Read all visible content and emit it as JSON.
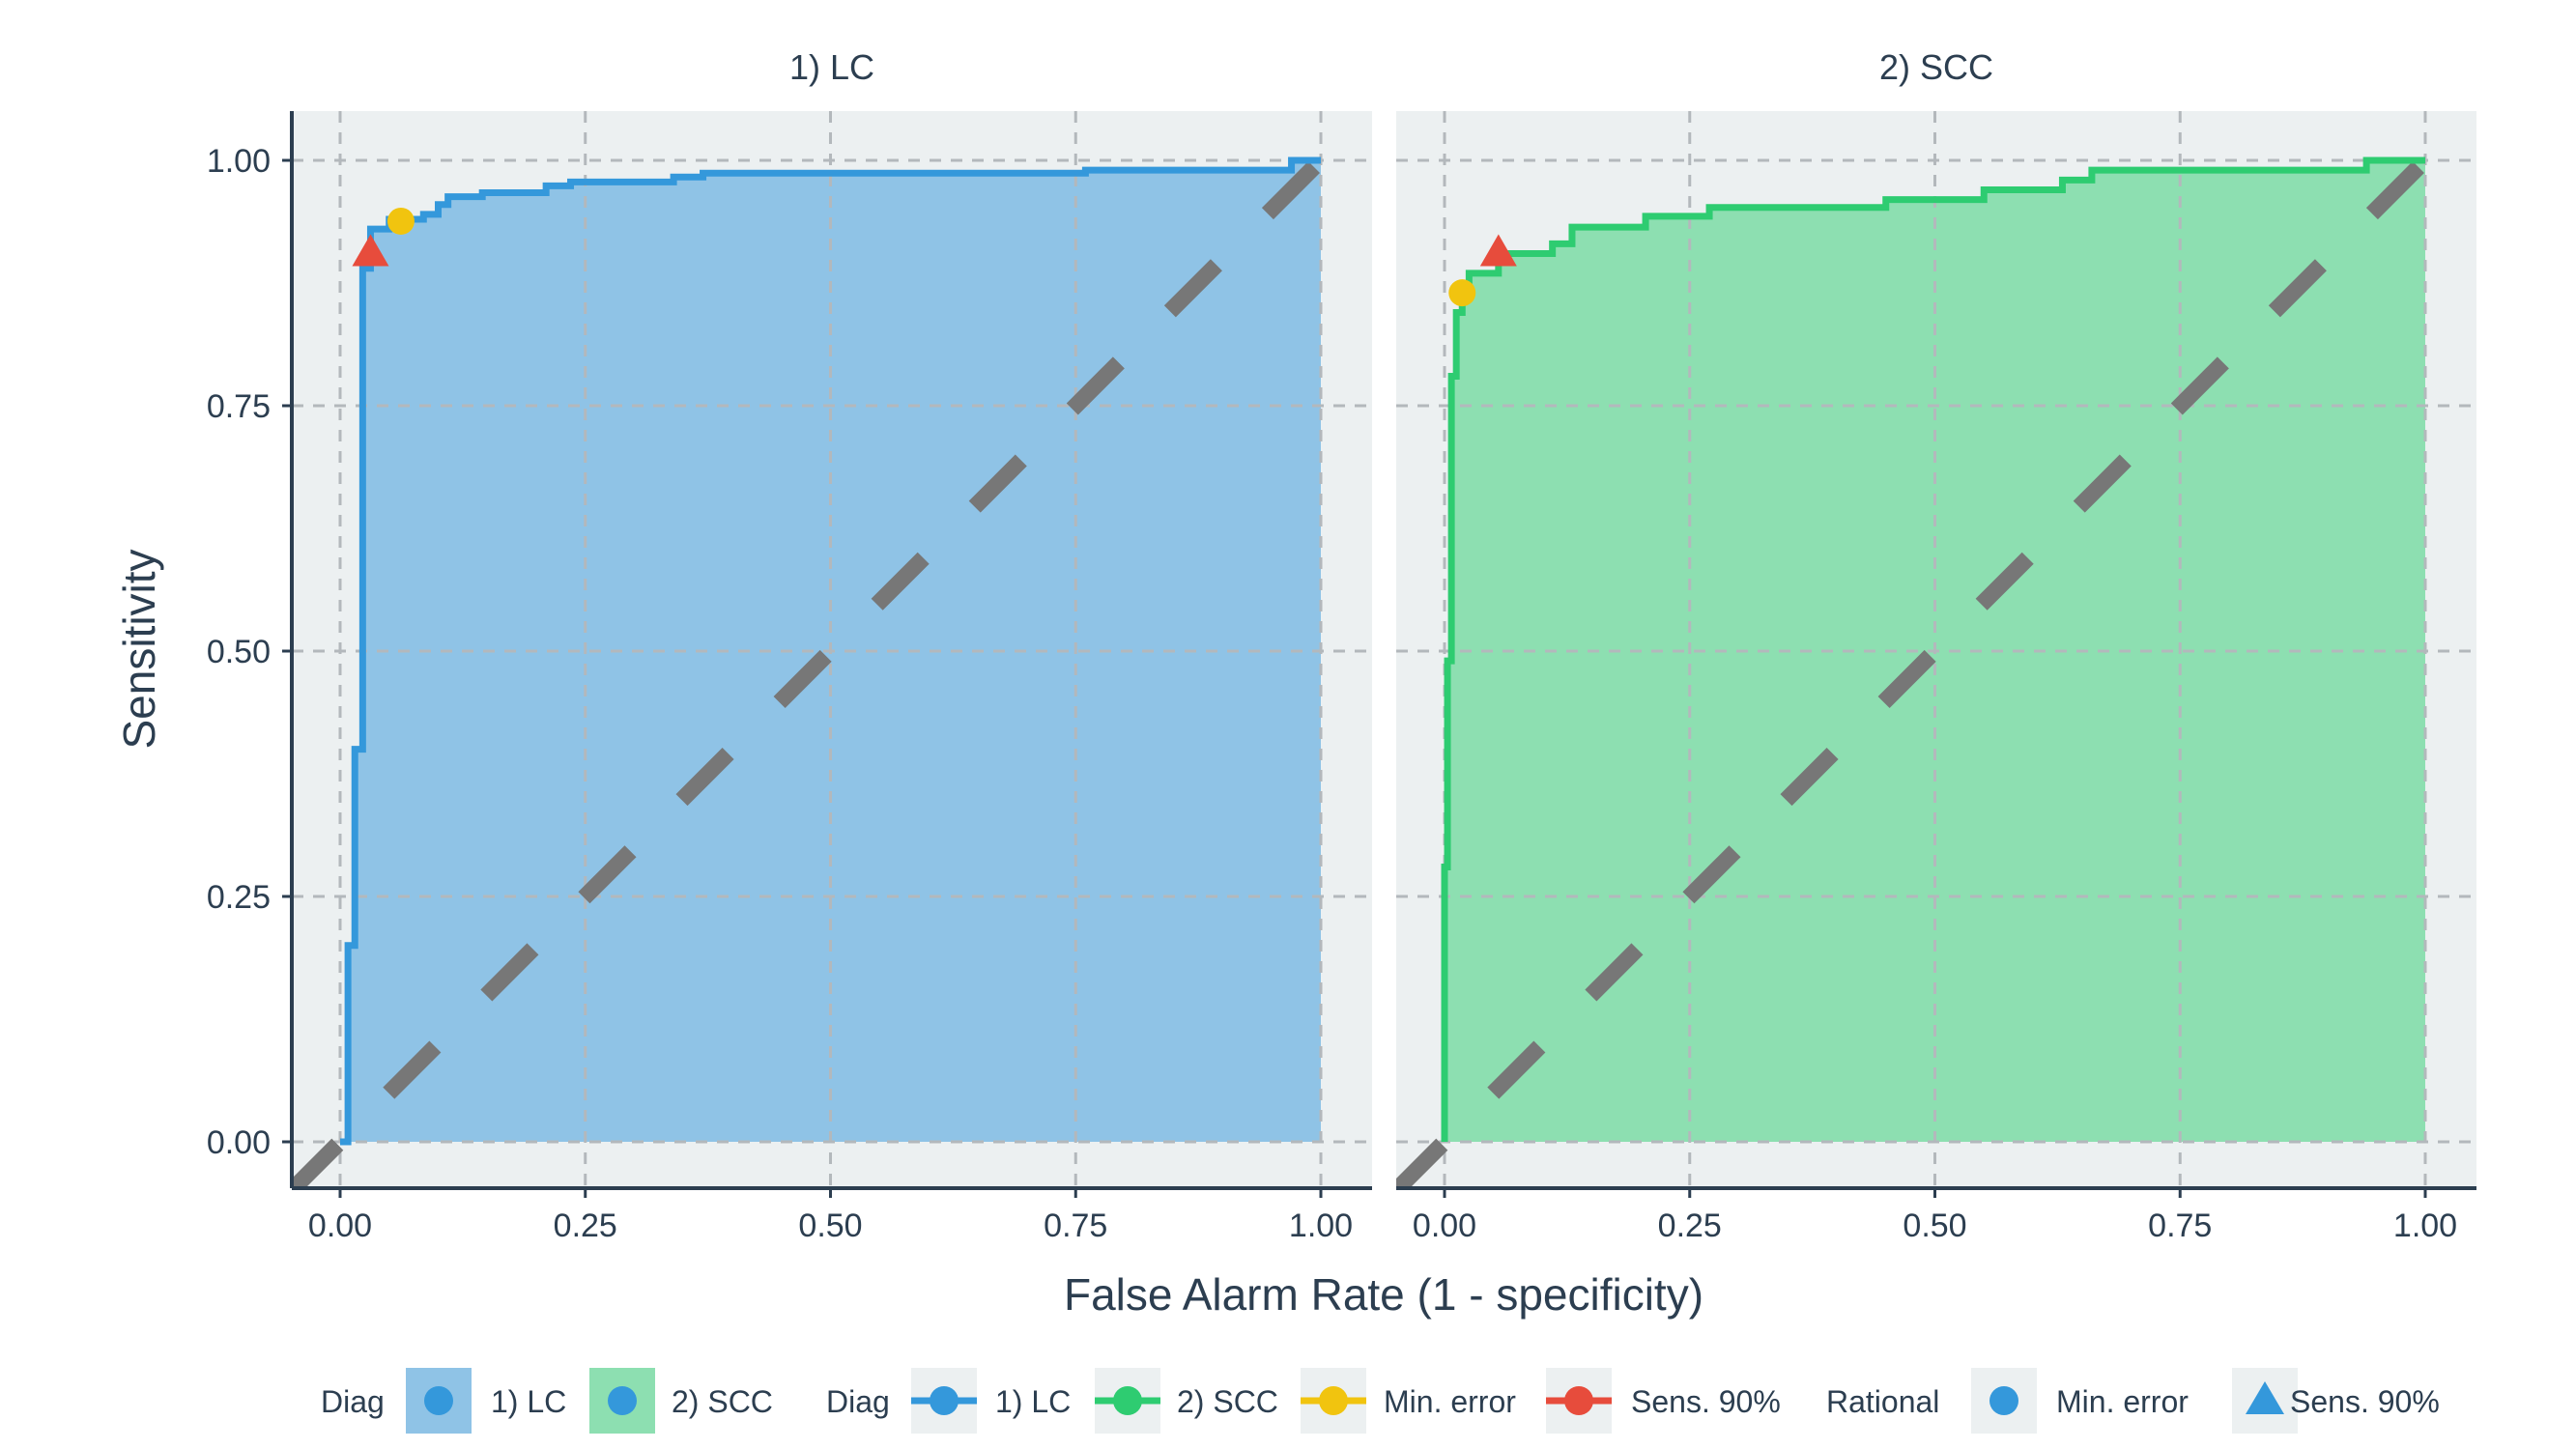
{
  "chart_data": {
    "type": "line",
    "xlabel": "False Alarm Rate (1 - specificity)",
    "ylabel": "Sensitivity",
    "xlim": [
      0,
      1
    ],
    "ylim": [
      0,
      1
    ],
    "x_ticks": [
      "0.00",
      "0.25",
      "0.50",
      "0.75",
      "1.00"
    ],
    "y_ticks": [
      "0.00",
      "0.25",
      "0.50",
      "0.75",
      "1.00"
    ],
    "grid": true,
    "legend_position": "bottom",
    "panels": [
      {
        "name": "1) LC",
        "line_color": "#3498db",
        "fill_color": "#8fc3e6",
        "roc": [
          [
            0,
            0
          ],
          [
            0.008,
            0
          ],
          [
            0.008,
            0.2
          ],
          [
            0.015,
            0.2
          ],
          [
            0.015,
            0.4
          ],
          [
            0.023,
            0.4
          ],
          [
            0.023,
            0.89
          ],
          [
            0.031,
            0.89
          ],
          [
            0.031,
            0.93
          ],
          [
            0.05,
            0.93
          ],
          [
            0.05,
            0.94
          ],
          [
            0.085,
            0.94
          ],
          [
            0.085,
            0.945
          ],
          [
            0.1,
            0.945
          ],
          [
            0.1,
            0.955
          ],
          [
            0.11,
            0.955
          ],
          [
            0.11,
            0.963
          ],
          [
            0.145,
            0.963
          ],
          [
            0.145,
            0.967
          ],
          [
            0.21,
            0.967
          ],
          [
            0.21,
            0.974
          ],
          [
            0.235,
            0.974
          ],
          [
            0.235,
            0.978
          ],
          [
            0.34,
            0.978
          ],
          [
            0.34,
            0.983
          ],
          [
            0.37,
            0.983
          ],
          [
            0.37,
            0.987
          ],
          [
            0.76,
            0.987
          ],
          [
            0.76,
            0.99
          ],
          [
            0.97,
            0.99
          ],
          [
            0.97,
            1.0
          ],
          [
            1.0,
            1.0
          ]
        ],
        "points": [
          {
            "label": "Min. error",
            "x": 0.062,
            "y": 0.938,
            "color": "#f1c40f",
            "shape": "circle"
          },
          {
            "label": "Sens. 90%",
            "x": 0.031,
            "y": 0.905,
            "color": "#e74c3c",
            "shape": "triangle"
          }
        ]
      },
      {
        "name": "2) SCC",
        "line_color": "#2ecc71",
        "fill_color": "#8ddfb1",
        "roc": [
          [
            0,
            0
          ],
          [
            0,
            0.28
          ],
          [
            0.003,
            0.28
          ],
          [
            0.003,
            0.49
          ],
          [
            0.007,
            0.49
          ],
          [
            0.007,
            0.78
          ],
          [
            0.012,
            0.78
          ],
          [
            0.012,
            0.845
          ],
          [
            0.018,
            0.845
          ],
          [
            0.018,
            0.87
          ],
          [
            0.025,
            0.87
          ],
          [
            0.025,
            0.885
          ],
          [
            0.055,
            0.885
          ],
          [
            0.055,
            0.905
          ],
          [
            0.11,
            0.905
          ],
          [
            0.11,
            0.915
          ],
          [
            0.13,
            0.915
          ],
          [
            0.13,
            0.932
          ],
          [
            0.205,
            0.932
          ],
          [
            0.205,
            0.943
          ],
          [
            0.27,
            0.943
          ],
          [
            0.27,
            0.952
          ],
          [
            0.45,
            0.952
          ],
          [
            0.45,
            0.96
          ],
          [
            0.55,
            0.96
          ],
          [
            0.55,
            0.97
          ],
          [
            0.63,
            0.97
          ],
          [
            0.63,
            0.98
          ],
          [
            0.66,
            0.98
          ],
          [
            0.66,
            0.99
          ],
          [
            0.94,
            0.99
          ],
          [
            0.94,
            1.0
          ],
          [
            1.0,
            1.0
          ]
        ],
        "points": [
          {
            "label": "Min. error",
            "x": 0.018,
            "y": 0.865,
            "color": "#f1c40f",
            "shape": "circle"
          },
          {
            "label": "Sens. 90%",
            "x": 0.055,
            "y": 0.905,
            "color": "#e74c3c",
            "shape": "triangle"
          }
        ]
      }
    ],
    "legend": [
      {
        "title": "Diag",
        "items": [
          {
            "label": "1) LC",
            "kind": "fill",
            "fill": "#8fc3e6",
            "color": "#3498db"
          },
          {
            "label": "2) SCC",
            "kind": "fill",
            "fill": "#8ddfb1",
            "color": "#3498db"
          }
        ]
      },
      {
        "title": "Diag",
        "items": [
          {
            "label": "1) LC",
            "kind": "line",
            "color": "#3498db"
          },
          {
            "label": "2) SCC",
            "kind": "line",
            "color": "#2ecc71"
          },
          {
            "label": "Min. error",
            "kind": "line",
            "color": "#f1c40f"
          },
          {
            "label": "Sens. 90%",
            "kind": "line",
            "color": "#e74c3c"
          }
        ]
      },
      {
        "title": "Rational",
        "items": [
          {
            "label": "Min. error",
            "kind": "circle",
            "color": "#3498db"
          },
          {
            "label": "Sens. 90%",
            "kind": "triangle",
            "color": "#3498db"
          }
        ]
      }
    ]
  }
}
